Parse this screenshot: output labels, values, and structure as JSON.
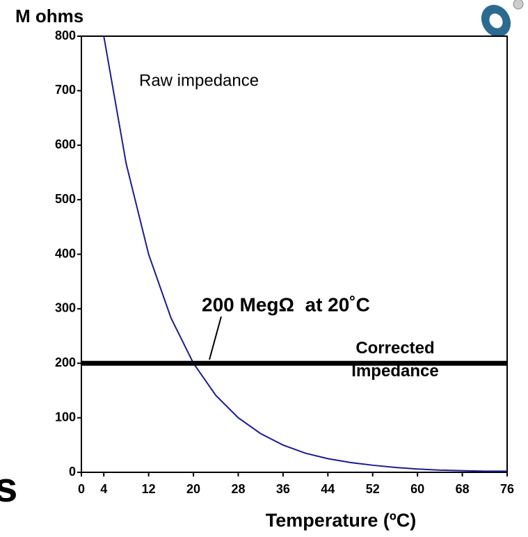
{
  "chart_data": {
    "type": "line",
    "y_label": "M ohms",
    "x_label": "Temperature (ºC)",
    "annotation": "200 MegΩ  at 20˚C",
    "edge_text": "s",
    "series": [
      {
        "name": "Raw impedance",
        "color": "#1c1c8f",
        "x": [
          4,
          8,
          12,
          16,
          20,
          24,
          28,
          32,
          36,
          40,
          44,
          48,
          52,
          56,
          60,
          64,
          68,
          72,
          76
        ],
        "values": [
          800,
          566,
          400,
          283,
          200,
          141,
          100,
          71,
          50,
          35,
          25,
          18,
          13,
          9,
          6,
          4,
          3,
          2,
          2
        ]
      },
      {
        "name": "Corrected Impedance",
        "color": "#000000",
        "x": [
          0,
          76
        ],
        "values": [
          200,
          200
        ]
      }
    ],
    "xlim": [
      0,
      76
    ],
    "xticks": [
      0,
      4,
      12,
      20,
      28,
      36,
      44,
      52,
      60,
      68,
      76
    ],
    "ylim": [
      0,
      800
    ],
    "yticks": [
      0,
      100,
      200,
      300,
      400,
      500,
      600,
      700,
      800
    ],
    "grid": false
  }
}
